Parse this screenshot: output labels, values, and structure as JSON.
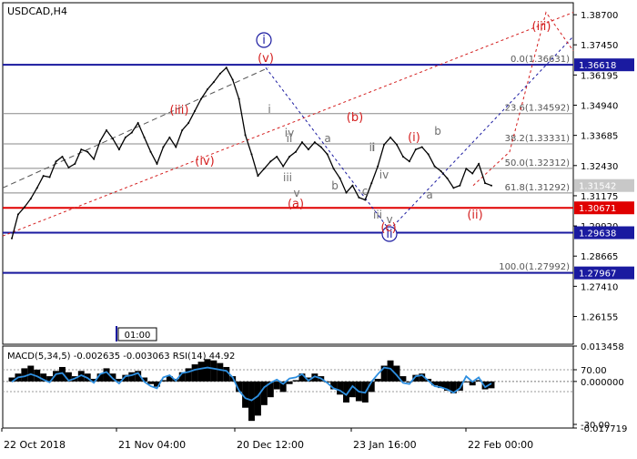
{
  "chart_data": {
    "type": "line",
    "symbol_label": "USDCAD,H4",
    "time_axis_labels": [
      "22 Oct 2018",
      "21 Nov 04:00",
      "20 Dec 12:00",
      "23 Jan 16:00",
      "22 Feb 00:00"
    ],
    "cursor_time_label": "01:00",
    "price_axis": {
      "ticks": [
        "1.38700",
        "1.37450",
        "1.36195",
        "1.34940",
        "1.33685",
        "1.32430",
        "1.31175",
        "1.29920",
        "1.28665",
        "1.27410",
        "1.26155"
      ],
      "range": [
        1.25,
        1.392
      ]
    },
    "price_series": [
      1.294,
      1.304,
      1.307,
      1.3105,
      1.315,
      1.32,
      1.3195,
      1.326,
      1.328,
      1.3235,
      1.325,
      1.331,
      1.33,
      1.327,
      1.3345,
      1.339,
      1.3355,
      1.331,
      1.336,
      1.338,
      1.342,
      1.336,
      1.33,
      1.325,
      1.332,
      1.336,
      1.332,
      1.339,
      1.342,
      1.347,
      1.352,
      1.356,
      1.359,
      1.3625,
      1.365,
      1.36,
      1.352,
      1.337,
      1.329,
      1.32,
      1.323,
      1.326,
      1.328,
      1.324,
      1.328,
      1.33,
      1.334,
      1.331,
      1.334,
      1.332,
      1.329,
      1.323,
      1.319,
      1.313,
      1.316,
      1.311,
      1.31,
      1.317,
      1.324,
      1.333,
      1.336,
      1.333,
      1.328,
      1.326,
      1.331,
      1.332,
      1.329,
      1.324,
      1.322,
      1.319,
      1.315,
      1.316,
      1.323,
      1.321,
      1.325,
      1.317,
      1.316
    ],
    "current_price_label": "1.31542",
    "horizontal_levels": [
      {
        "price": 1.36618,
        "label": "1.36618",
        "color": "#1a1aa0"
      },
      {
        "price": 1.30671,
        "label": "1.30671",
        "color": "#e00000"
      },
      {
        "price": 1.29638,
        "label": "1.29638",
        "color": "#1a1aa0"
      },
      {
        "price": 1.27967,
        "label": "1.27967",
        "color": "#1a1aa0"
      }
    ],
    "fibonacci_levels": [
      {
        "price": 1.36631,
        "label": "0.0(1.36631)"
      },
      {
        "price": 1.34592,
        "label": "23.6(1.34592)"
      },
      {
        "price": 1.33331,
        "label": "38.2(1.33331)"
      },
      {
        "price": 1.32312,
        "label": "50.0(1.32312)"
      },
      {
        "price": 1.31292,
        "label": "61.8(1.31292)"
      },
      {
        "price": 1.27992,
        "label": "100.0(1.27992)"
      }
    ],
    "wave_labels": [
      {
        "text": "i",
        "style": "blue-circle"
      },
      {
        "text": "ii",
        "style": "blue-circle"
      },
      {
        "text": "(v)",
        "style": "red"
      },
      {
        "text": "(iii)",
        "style": "red"
      },
      {
        "text": "(iv)",
        "style": "red"
      },
      {
        "text": "(a)",
        "style": "red"
      },
      {
        "text": "(b)",
        "style": "red"
      },
      {
        "text": "(c)",
        "style": "red"
      },
      {
        "text": "(i)",
        "style": "red"
      },
      {
        "text": "(ii)",
        "style": "red"
      },
      {
        "text": "(iii)",
        "style": "red"
      },
      {
        "text": "i",
        "style": "gray"
      },
      {
        "text": "ii",
        "style": "gray"
      },
      {
        "text": "iii",
        "style": "gray"
      },
      {
        "text": "iv",
        "style": "gray"
      },
      {
        "text": "v",
        "style": "gray"
      },
      {
        "text": "a",
        "style": "gray"
      },
      {
        "text": "b",
        "style": "gray"
      },
      {
        "text": "c",
        "style": "gray"
      },
      {
        "text": "i",
        "style": "gray"
      },
      {
        "text": "ii",
        "style": "gray"
      },
      {
        "text": "iii",
        "style": "gray"
      },
      {
        "text": "iv",
        "style": "gray"
      },
      {
        "text": "v",
        "style": "gray"
      },
      {
        "text": "a",
        "style": "gray"
      },
      {
        "text": "b",
        "style": "gray"
      }
    ],
    "indicator": {
      "label": "MACD(5,34,5) -0.002635 -0.003063 RSI(14) 44.92",
      "axis_ticks": [
        "0.013458",
        "70.00",
        "0.000000",
        "-30.00",
        "-0.017719"
      ],
      "macd_range": [
        -0.017719,
        0.013458
      ],
      "macd_histogram": [
        0.0015,
        0.003,
        0.005,
        0.006,
        0.0045,
        0.003,
        0.002,
        0.004,
        0.0055,
        0.0035,
        0.002,
        0.004,
        0.003,
        0.001,
        0.003,
        0.005,
        0.003,
        0.001,
        0.0025,
        0.0035,
        0.004,
        0.0015,
        -0.001,
        -0.002,
        0.0005,
        0.002,
        0.001,
        0.0035,
        0.005,
        0.0065,
        0.0075,
        0.0085,
        0.008,
        0.007,
        0.0055,
        0.002,
        -0.004,
        -0.01,
        -0.015,
        -0.013,
        -0.009,
        -0.006,
        -0.003,
        -0.004,
        -0.001,
        0.0005,
        0.003,
        0.0015,
        0.003,
        0.002,
        0.0,
        -0.003,
        -0.005,
        -0.008,
        -0.006,
        -0.0075,
        -0.008,
        -0.004,
        0.001,
        0.006,
        0.008,
        0.006,
        0.002,
        0.0,
        0.0025,
        0.003,
        0.001,
        -0.0015,
        -0.0025,
        -0.0035,
        -0.0045,
        -0.0035,
        0.0,
        -0.0015,
        0.0005,
        -0.003,
        -0.0026
      ],
      "rsi_range": [
        0,
        100
      ],
      "rsi_series": [
        48,
        56,
        58,
        62,
        58,
        52,
        47,
        62,
        64,
        50,
        54,
        60,
        55,
        46,
        62,
        66,
        54,
        45,
        58,
        60,
        64,
        48,
        40,
        36,
        56,
        60,
        50,
        64,
        66,
        70,
        72,
        74,
        72,
        70,
        68,
        56,
        32,
        18,
        14,
        22,
        38,
        46,
        52,
        44,
        54,
        56,
        62,
        50,
        58,
        54,
        46,
        36,
        32,
        24,
        40,
        30,
        28,
        48,
        62,
        74,
        72,
        60,
        46,
        44,
        58,
        60,
        50,
        40,
        38,
        34,
        28,
        36,
        58,
        48,
        56,
        38,
        44.92
      ]
    },
    "colors": {
      "price": "#000000",
      "blue_level": "#1a1aa0",
      "red_level": "#e00000",
      "fib_level": "#888888",
      "wave_red": "#d41e1e",
      "wave_blue": "#1a1aa0",
      "wave_gray": "#6f6f6f",
      "rsi": "#2e8fe0",
      "macd_hist": "#000000"
    }
  }
}
